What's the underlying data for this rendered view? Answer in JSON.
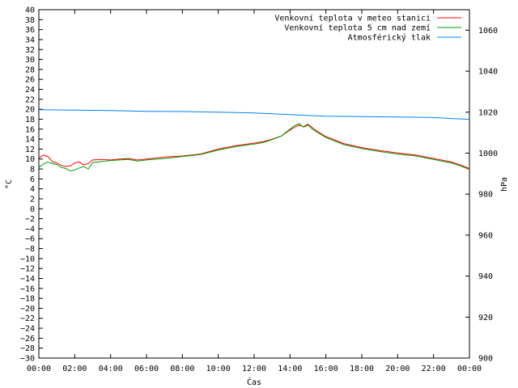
{
  "chart_data": {
    "type": "line",
    "xlabel": "Čas",
    "ylabel_left": "°C",
    "ylabel_right": "hPa",
    "ylim_left": [
      -30,
      40
    ],
    "ylim_right": [
      900,
      1070
    ],
    "xlim": [
      "00:00",
      "24:00"
    ],
    "x_tick_labels": [
      "00:00",
      "02:00",
      "04:00",
      "06:00",
      "08:00",
      "10:00",
      "12:00",
      "14:00",
      "16:00",
      "18:00",
      "20:00",
      "22:00",
      "00:00"
    ],
    "y_left_ticks": [
      -30,
      -28,
      -26,
      -24,
      -22,
      -20,
      -18,
      -16,
      -14,
      -12,
      -10,
      -8,
      -6,
      -4,
      -2,
      0,
      2,
      4,
      6,
      8,
      10,
      12,
      14,
      16,
      18,
      20,
      22,
      24,
      26,
      28,
      30,
      32,
      34,
      36,
      38,
      40
    ],
    "y_right_ticks": [
      900,
      920,
      940,
      960,
      980,
      1000,
      1020,
      1040,
      1060
    ],
    "grid": false,
    "legend_position": "top-right",
    "series": [
      {
        "name": "Venkovní teplota v meteo stanici",
        "color": "#ff0000",
        "axis": "left",
        "x": [
          0,
          0.25,
          0.5,
          0.75,
          1,
          1.25,
          1.5,
          1.75,
          2,
          2.25,
          2.5,
          2.75,
          3,
          3.5,
          4,
          4.5,
          5,
          5.5,
          6,
          7,
          8,
          9,
          10,
          11,
          12,
          12.5,
          13,
          13.5,
          14,
          14.25,
          14.5,
          14.75,
          15,
          15.25,
          15.5,
          16,
          17,
          18,
          19,
          20,
          21,
          22,
          23,
          23.5,
          24
        ],
        "values": [
          10.2,
          10.8,
          10.5,
          9.5,
          9.2,
          8.7,
          8.5,
          8.6,
          9.2,
          9.4,
          8.8,
          9.1,
          9.8,
          9.9,
          9.8,
          10.0,
          10.1,
          9.8,
          10.0,
          10.4,
          10.6,
          11.0,
          12.0,
          12.7,
          13.2,
          13.5,
          14.0,
          14.6,
          15.8,
          16.4,
          16.8,
          16.5,
          17.0,
          16.3,
          15.6,
          14.5,
          13.1,
          12.3,
          11.7,
          11.2,
          10.8,
          10.1,
          9.4,
          8.8,
          8.1
        ]
      },
      {
        "name": "Venkovní teplota 5 cm nad zemí",
        "color": "#00a000",
        "axis": "left",
        "x": [
          0,
          0.25,
          0.5,
          0.75,
          1,
          1.25,
          1.5,
          1.75,
          2,
          2.25,
          2.5,
          2.75,
          3,
          3.5,
          4,
          4.5,
          5,
          5.5,
          6,
          7,
          8,
          9,
          10,
          11,
          12,
          12.5,
          13,
          13.5,
          14,
          14.25,
          14.5,
          14.75,
          15,
          15.25,
          15.5,
          16,
          17,
          18,
          19,
          20,
          21,
          22,
          23,
          23.5,
          24
        ],
        "values": [
          8.3,
          9.0,
          9.4,
          9.1,
          8.9,
          8.3,
          8.1,
          7.6,
          7.8,
          8.2,
          8.5,
          8.0,
          9.3,
          9.5,
          9.7,
          9.8,
          9.9,
          9.6,
          9.8,
          10.1,
          10.5,
          10.9,
          11.8,
          12.5,
          13.0,
          13.3,
          13.9,
          14.6,
          16.0,
          16.7,
          17.1,
          16.4,
          16.8,
          16.0,
          15.4,
          14.3,
          12.9,
          12.1,
          11.5,
          11.0,
          10.6,
          9.9,
          9.2,
          8.6,
          7.9
        ]
      },
      {
        "name": "Atmosférický tlak",
        "color": "#0080ff",
        "axis": "right",
        "x": [
          0,
          2,
          4,
          6,
          8,
          10,
          12,
          14,
          16,
          18,
          20,
          22,
          23,
          24
        ],
        "values": [
          1021.2,
          1021.0,
          1020.8,
          1020.4,
          1020.3,
          1020.0,
          1019.6,
          1018.8,
          1018.0,
          1017.8,
          1017.6,
          1017.4,
          1016.9,
          1016.5
        ]
      }
    ]
  }
}
